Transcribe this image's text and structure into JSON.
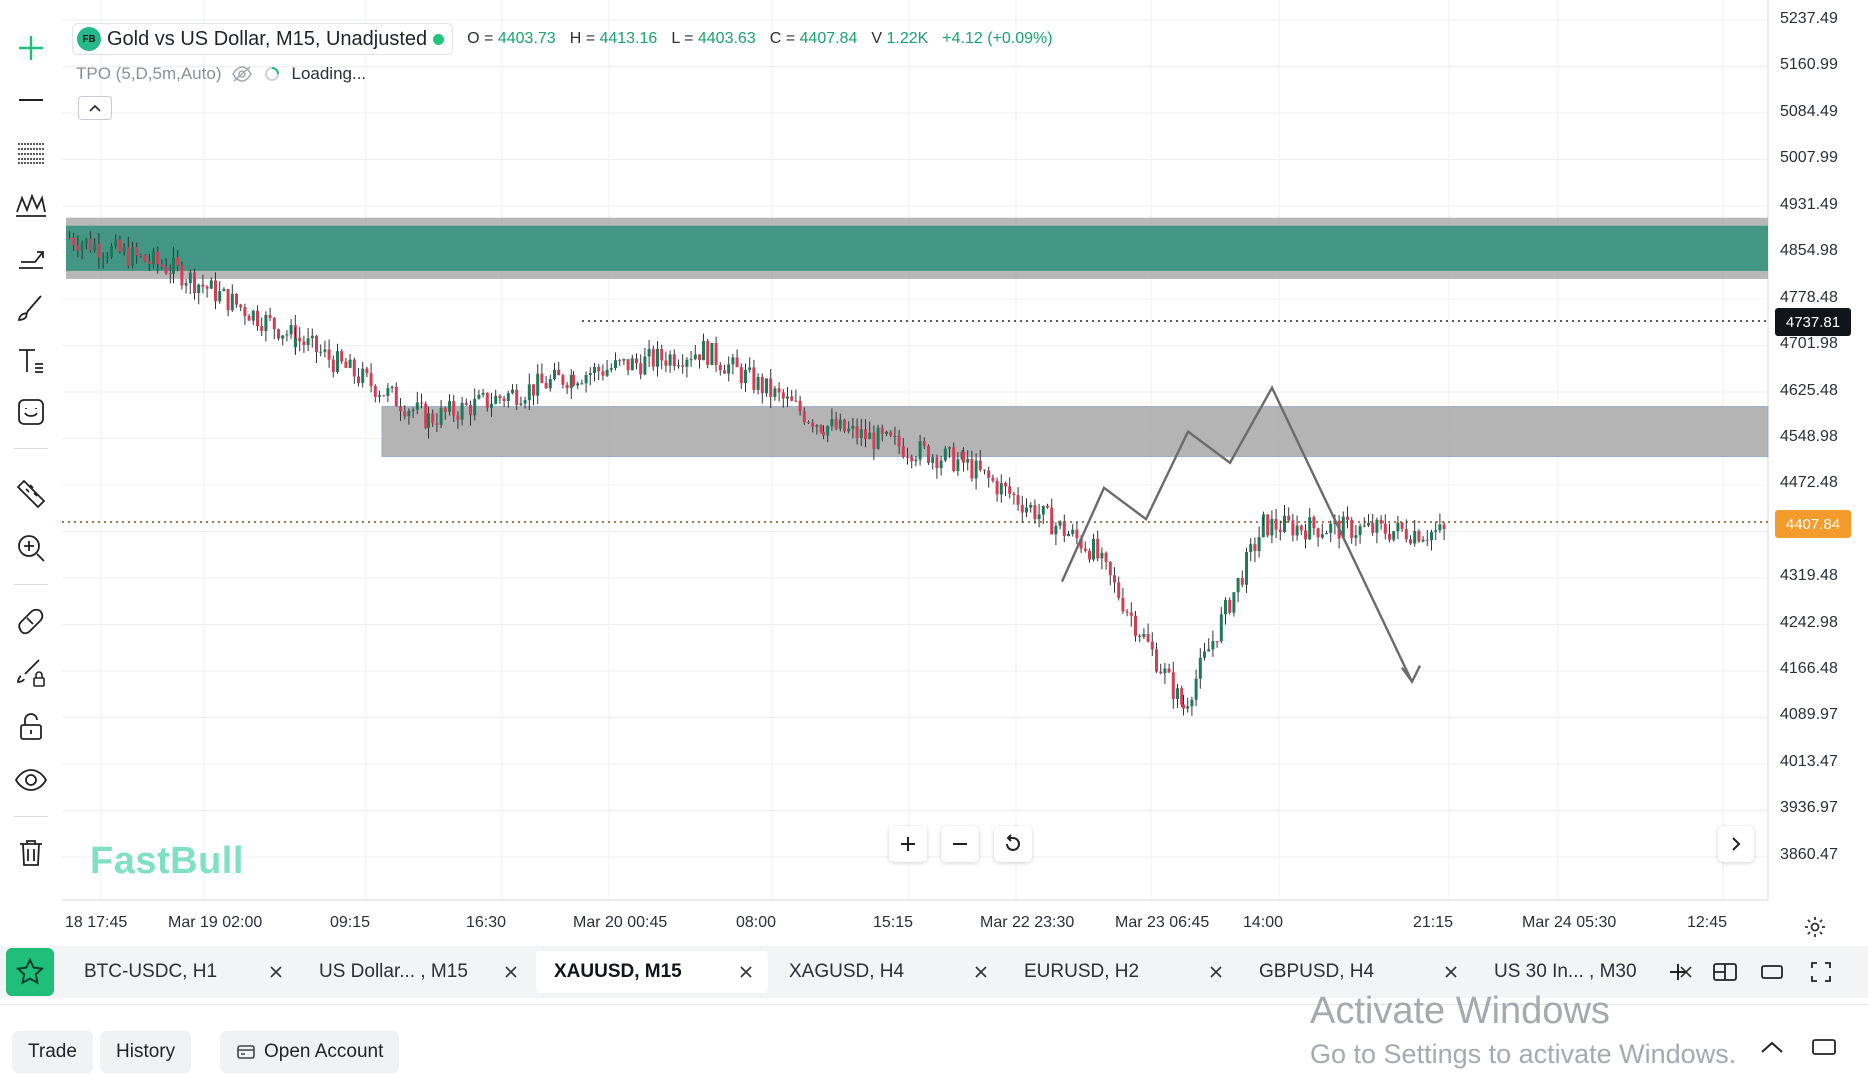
{
  "legend": {
    "badge": "FB",
    "title": "Gold vs US Dollar, M15, Unadjusted",
    "open_label": "O =",
    "open": "4403.73",
    "high_label": "H =",
    "high": "4413.16",
    "low_label": "L =",
    "low": "4403.63",
    "close_label": "C =",
    "close": "4407.84",
    "volume_label": "V",
    "volume": "1.22K",
    "change": "+4.12 (+0.09%)"
  },
  "indicator": {
    "name": "TPO (5,D,5m,Auto)",
    "status": "Loading..."
  },
  "price_axis": {
    "ticks": [
      "5237.49",
      "5160.99",
      "5084.49",
      "5007.99",
      "4931.49",
      "4854.98",
      "4778.48",
      "4701.98",
      "4625.48",
      "4548.98",
      "4472.48",
      "4319.48",
      "4242.98",
      "4166.48",
      "4089.97",
      "4013.47",
      "3936.97",
      "3860.47"
    ],
    "last_price": "4407.84",
    "level_price": "4737.81"
  },
  "time_axis": {
    "ticks": [
      "18 17:45",
      "Mar 19 02:00",
      "09:15",
      "16:30",
      "Mar 20 00:45",
      "08:00",
      "15:15",
      "Mar 22 23:30",
      "Mar 23 06:45",
      "14:00",
      "21:15",
      "Mar 24 05:30",
      "12:45"
    ]
  },
  "colors": {
    "up": "#26a69a",
    "down": "#e0425a",
    "zone_teal": "#2e8f7a",
    "zone_gray": "#9a9a9a",
    "last_price": "#f39c2b",
    "accent": "#1fbf7a"
  },
  "watermark": "FastBull",
  "tabs": [
    {
      "label": "BTC-USDC, H1",
      "active": false
    },
    {
      "label": "US Dollar... , M15",
      "active": false
    },
    {
      "label": "XAUUSD, M15",
      "active": true
    },
    {
      "label": "XAGUSD, H4",
      "active": false
    },
    {
      "label": "EURUSD, H2",
      "active": false
    },
    {
      "label": "GBPUSD, H4",
      "active": false
    },
    {
      "label": "US 30 In... , M30",
      "active": false
    }
  ],
  "bottom": {
    "trade": "Trade",
    "history": "History",
    "open_account": "Open Account"
  },
  "os_watermark": {
    "title": "Activate Windows",
    "subtitle": "Go to Settings to activate Windows."
  },
  "chart_data": {
    "type": "candlestick",
    "symbol": "XAUUSD",
    "timeframe": "M15",
    "ylim": [
      3821.0,
      5260.0
    ],
    "zones": [
      {
        "from_price": 4830,
        "to_price": 4880,
        "color": "teal"
      },
      {
        "from_price": 4530,
        "to_price": 4610,
        "color": "gray"
      }
    ],
    "horizontal_levels": [
      4737.81,
      4407.84
    ],
    "projection_path": [
      {
        "time_index": 0.0,
        "price": 4330
      },
      {
        "time_index": 0.03,
        "price": 4480
      },
      {
        "time_index": 0.06,
        "price": 4430
      },
      {
        "time_index": 0.09,
        "price": 4570
      },
      {
        "time_index": 0.12,
        "price": 4520
      },
      {
        "time_index": 0.15,
        "price": 4640
      },
      {
        "time_index": 0.25,
        "price": 4170
      }
    ],
    "close_path": [
      {
        "time": "18 17:45",
        "close": 4880
      },
      {
        "time": "Mar 19 02:00",
        "close": 4830
      },
      {
        "time": "09:15",
        "close": 4720
      },
      {
        "time": "16:30",
        "close": 4590
      },
      {
        "time": "Mar 20 00:45",
        "close": 4660
      },
      {
        "time": "08:00",
        "close": 4700
      },
      {
        "time": "15:15",
        "close": 4580
      },
      {
        "time": "Mar 22 23:30",
        "close": 4520
      },
      {
        "time": "Mar 23 06:45",
        "close": 4380
      },
      {
        "time": "Mar 23 10:00",
        "close": 4130
      },
      {
        "time": "14:00",
        "close": 4420
      },
      {
        "time": "21:15",
        "close": 4408
      }
    ]
  }
}
